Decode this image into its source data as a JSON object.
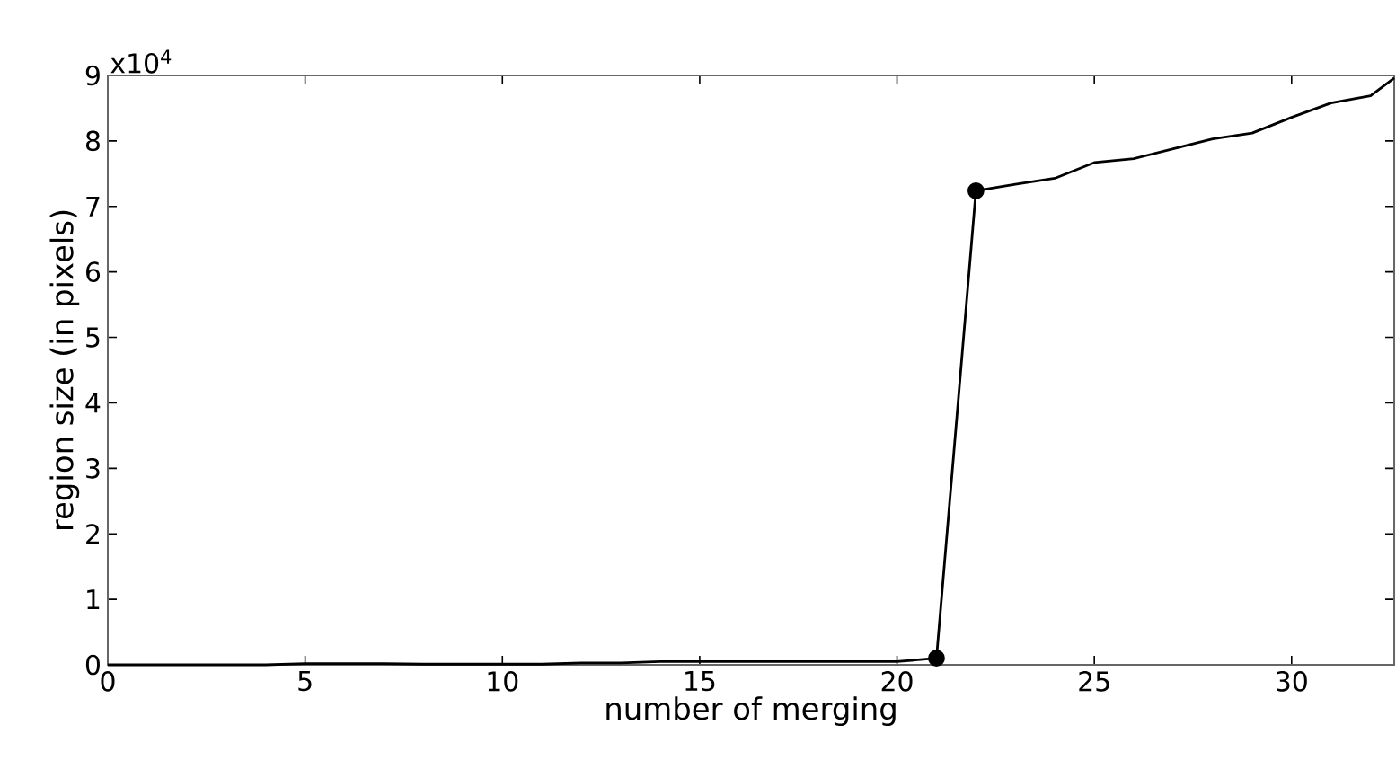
{
  "chart_data": {
    "type": "line",
    "xlabel": "number of merging",
    "ylabel": "region size (in pixels)",
    "annotations": [
      "x10$^{4}$"
    ],
    "xlim": [
      0,
      32.6
    ],
    "xticks": [
      0,
      5,
      10,
      15,
      20,
      25,
      30
    ],
    "ylim": [
      0,
      9
    ],
    "yticks": [
      0,
      1,
      2,
      3,
      4,
      5,
      6,
      7,
      8,
      9
    ],
    "grid": false,
    "series": [
      {
        "color": "#000000",
        "marker": "none",
        "x": [
          0,
          1,
          2,
          3,
          4,
          5,
          6,
          7,
          8,
          9,
          10,
          11,
          12,
          13,
          14,
          15,
          16,
          17,
          18,
          19,
          20,
          21,
          22,
          23,
          24,
          25,
          26,
          27,
          28,
          29,
          30,
          31,
          32,
          32.6
        ],
        "values": [
          0,
          0,
          0,
          0,
          0,
          0.02,
          0.02,
          0.02,
          0.01,
          0.01,
          0.01,
          0.01,
          0.03,
          0.03,
          0.05,
          0.05,
          0.05,
          0.05,
          0.05,
          0.05,
          0.05,
          0.1,
          7.24,
          7.34,
          7.43,
          7.67,
          7.73,
          7.88,
          8.03,
          8.12,
          8.36,
          8.58,
          8.69,
          8.96
        ]
      },
      {
        "type": "scatter",
        "color": "#000000",
        "marker": "circle",
        "x": [
          21,
          22
        ],
        "values": [
          0.1,
          7.24
        ]
      }
    ]
  }
}
